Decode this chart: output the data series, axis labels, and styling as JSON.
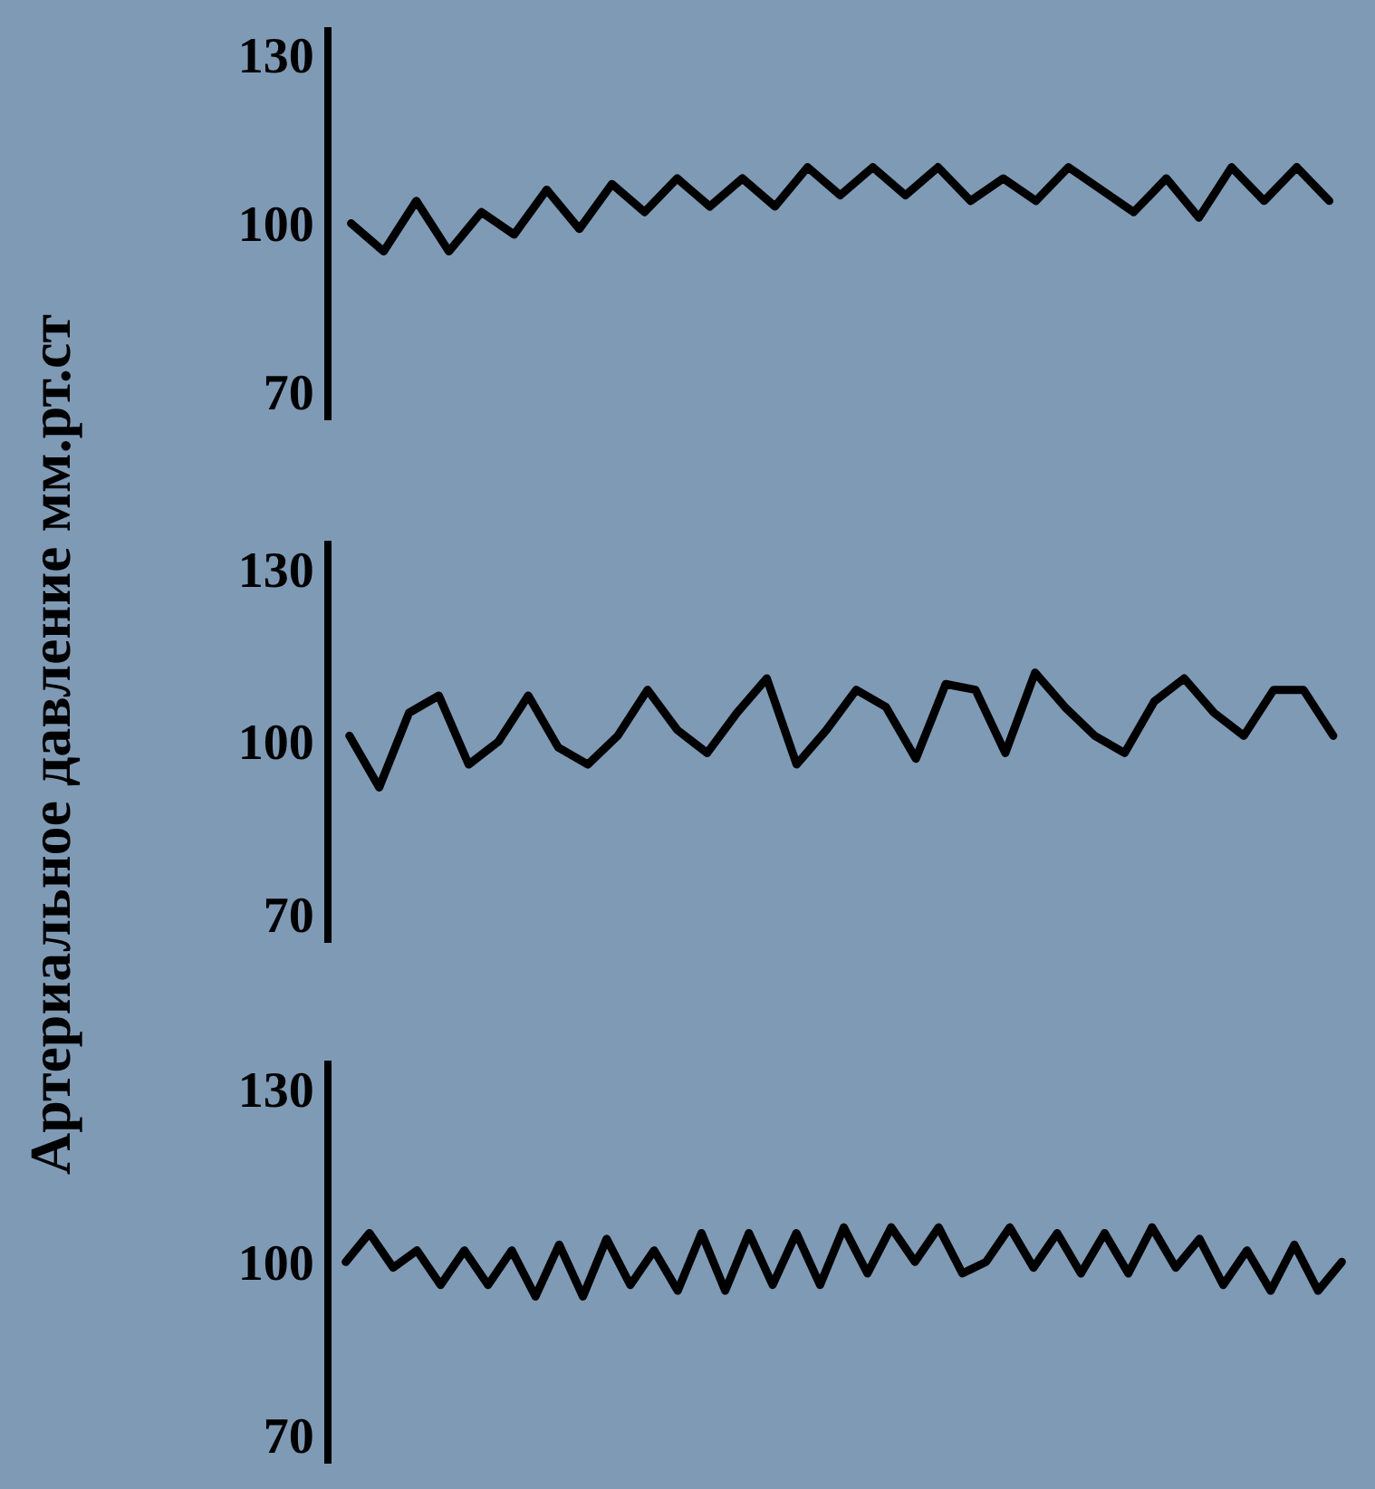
{
  "chart_data": [
    {
      "type": "line",
      "categories": [
        null,
        null,
        null,
        null,
        null,
        null,
        null,
        null,
        null,
        null,
        null,
        null,
        null,
        null,
        null,
        null,
        null,
        null,
        null,
        null,
        null,
        null,
        null,
        null,
        null,
        null,
        null,
        null,
        null,
        null,
        null
      ],
      "series": [
        {
          "color": "#000000",
          "values": [
            100,
            95,
            104,
            95,
            102,
            98,
            106,
            99,
            107,
            102,
            108,
            103,
            108,
            103,
            110,
            105,
            110,
            105,
            110,
            104,
            108,
            104,
            110,
            106,
            102,
            108,
            101,
            110,
            104,
            110,
            104
          ]
        }
      ],
      "ylim": [
        65,
        135
      ],
      "yticks": [
        70,
        100,
        130
      ],
      "tick_labels": "y",
      "grid": false,
      "marker": "none",
      "line_style": "solid"
    },
    {
      "type": "line",
      "ylabel": "Артериальное давление мм.рт.ст",
      "categories": [
        null,
        null,
        null,
        null,
        null,
        null,
        null,
        null,
        null,
        null,
        null,
        null,
        null,
        null,
        null,
        null,
        null,
        null,
        null,
        null,
        null,
        null,
        null,
        null,
        null,
        null,
        null,
        null,
        null,
        null,
        null,
        null,
        null,
        null
      ],
      "series": [
        {
          "color": "#000000",
          "values": [
            101,
            92,
            105,
            108,
            96,
            100,
            108,
            99,
            96,
            101,
            109,
            102,
            98,
            105,
            111,
            96,
            102,
            109,
            106,
            97,
            110,
            109,
            98,
            112,
            106,
            101,
            98,
            107,
            111,
            105,
            101,
            109,
            109,
            101
          ]
        }
      ],
      "ylim": [
        65,
        135
      ],
      "yticks": [
        70,
        100,
        130
      ],
      "tick_labels": "y",
      "grid": false,
      "marker": "none",
      "line_style": "solid"
    },
    {
      "type": "line",
      "categories": [
        null,
        null,
        null,
        null,
        null,
        null,
        null,
        null,
        null,
        null,
        null,
        null,
        null,
        null,
        null,
        null,
        null,
        null,
        null,
        null,
        null,
        null,
        null,
        null,
        null,
        null,
        null,
        null,
        null,
        null,
        null,
        null,
        null,
        null,
        null,
        null,
        null,
        null,
        null,
        null,
        null,
        null,
        null
      ],
      "series": [
        {
          "color": "#000000",
          "values": [
            100,
            105,
            99,
            102,
            96,
            102,
            96,
            102,
            94,
            103,
            94,
            104,
            96,
            102,
            95,
            105,
            95,
            105,
            96,
            105,
            96,
            106,
            98,
            106,
            100,
            106,
            98,
            100,
            106,
            99,
            105,
            98,
            105,
            98,
            106,
            99,
            104,
            96,
            102,
            95,
            103,
            95,
            100
          ]
        }
      ],
      "ylim": [
        65,
        135
      ],
      "yticks": [
        70,
        100,
        130
      ],
      "tick_labels": "y",
      "grid": false,
      "marker": "none",
      "line_style": "solid"
    }
  ]
}
